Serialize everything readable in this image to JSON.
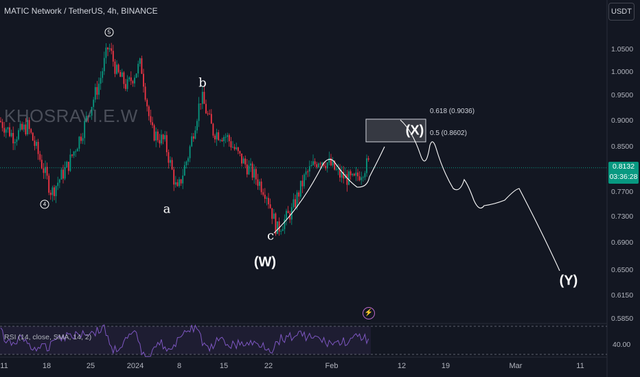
{
  "header": {
    "title": "MATIC Network / TetherUS, 4h, BINANCE",
    "currency_button": "USDT"
  },
  "watermark": "KHOSRAVI.E.W",
  "price_axis": {
    "ticks": [
      "1.0500",
      "1.0000",
      "0.9500",
      "0.9000",
      "0.8500",
      "0.7700",
      "0.7300",
      "0.6900",
      "0.6500",
      "0.6150",
      "0.5850"
    ],
    "current_price": "0.8132",
    "countdown": "03:36:28"
  },
  "time_axis": {
    "ticks": [
      "11",
      "18",
      "25",
      "2024",
      "8",
      "15",
      "22",
      "Feb",
      "12",
      "19",
      "Mar",
      "11"
    ]
  },
  "fib_levels": {
    "upper": "0.618 (0.9036)",
    "lower": "0.5 (0.8602)"
  },
  "wave_labels": {
    "five": "5",
    "four": "4",
    "a": "a",
    "b": "b",
    "c": "c",
    "W": "(W)",
    "X": "(X)",
    "Y": "(Y)"
  },
  "rsi": {
    "label": "RSI (14, close, SMA, 14, 2)",
    "value": "40.00"
  },
  "colors": {
    "background": "#131722",
    "up": "#089981",
    "down": "#f23645",
    "rsi_line": "#7e57c2",
    "projection": "#ffffff"
  },
  "chart_data": {
    "type": "candlestick",
    "title": "MATIC Network / TetherUS, 4h, BINANCE",
    "y_scale": "log",
    "ylim": [
      0.585,
      1.05
    ],
    "current_price": 0.8132,
    "key_points": [
      {
        "label": "4",
        "price": 0.77
      },
      {
        "label": "5",
        "price": 1.06
      },
      {
        "label": "a",
        "price": 0.77
      },
      {
        "label": "b",
        "price": 0.95
      },
      {
        "label": "c",
        "price": 0.71
      },
      {
        "label": "(W)",
        "price": 0.71
      }
    ],
    "fib_zone": {
      "upper": 0.9036,
      "lower": 0.8602
    },
    "projection_labels": [
      "(X)",
      "(Y)"
    ],
    "indicator": {
      "name": "RSI (14, close, SMA, 14, 2)",
      "level": 40.0
    }
  }
}
